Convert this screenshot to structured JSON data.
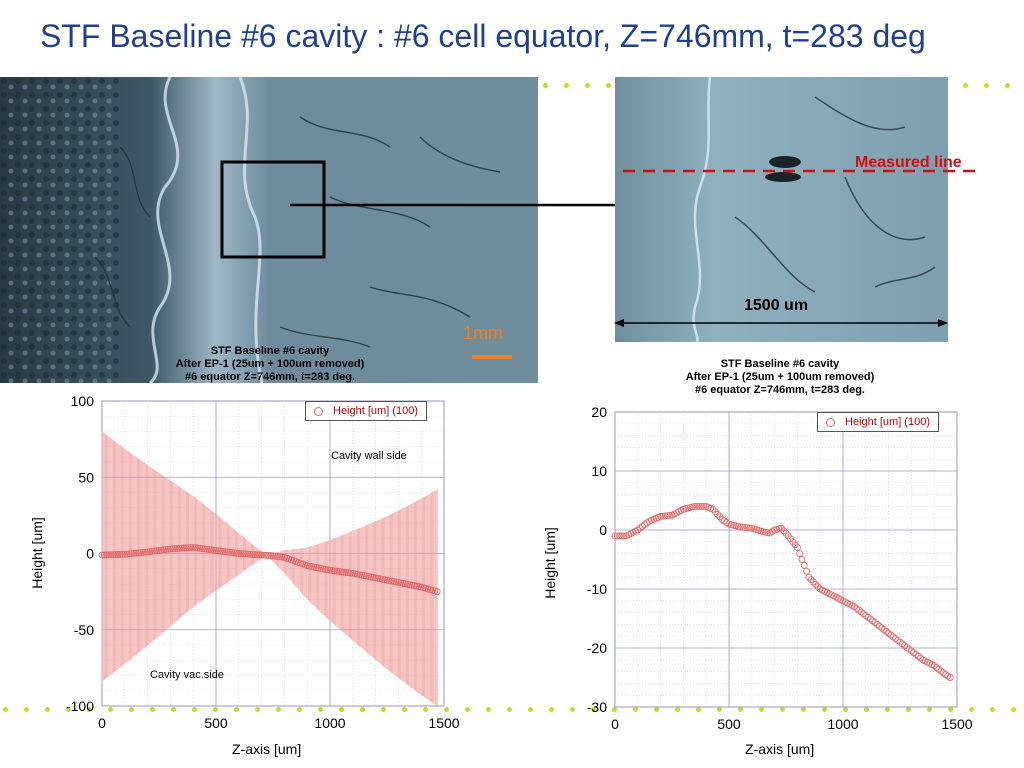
{
  "slide": {
    "title": "STF Baseline #6 cavity : #6 cell equator, Z=746mm, t=283 deg",
    "colors": {
      "title": "#1f3f8f",
      "dots": "#c5d82b",
      "series": "#e26a6a",
      "measured_line": "#d01010"
    }
  },
  "micrograph_left": {
    "scale_bar_label": "1mm",
    "caption": [
      "STF Baseline #6 cavity",
      "After EP-1 (25um + 100um removed)",
      "#6 equator Z=746mm, t=283 deg."
    ]
  },
  "micrograph_right": {
    "measured_line_label": "Measured line",
    "width_label": "1500 um"
  },
  "chart_data": [
    {
      "type": "scatter",
      "title": "",
      "xlabel": "Z-axis [um]",
      "ylabel": "Height [um]",
      "xlim": [
        0,
        1500
      ],
      "ylim": [
        -100,
        100
      ],
      "xticks": [
        0,
        500,
        1000,
        1500
      ],
      "yticks": [
        100,
        50,
        0,
        -50,
        -100
      ],
      "grid": true,
      "legend_position": "top-right",
      "series": [
        {
          "name": "Height [um] (100)",
          "x": [
            0,
            100,
            200,
            300,
            400,
            500,
            600,
            700,
            750,
            800,
            900,
            1000,
            1100,
            1200,
            1300,
            1400,
            1470
          ],
          "y": [
            -1,
            -0.5,
            1,
            3,
            4,
            2,
            0,
            -1,
            -1.5,
            -2.5,
            -8,
            -11,
            -13,
            -16,
            -19,
            -22,
            -25
          ]
        }
      ],
      "annotations": [
        "Cavity wall side",
        "Cavity vac.side"
      ],
      "error_band_extent": {
        "left_top": 80,
        "left_bottom": -84,
        "cross_x": 720,
        "right_top": 42,
        "right_bottom": -100
      }
    },
    {
      "type": "scatter",
      "title": "STF Baseline #6 cavity\nAfter EP-1 (25um + 100um removed)\n#6 equator Z=746mm, t=283 deg.",
      "title_lines": [
        "STF Baseline #6 cavity",
        "After EP-1 (25um + 100um removed)",
        "#6 equator Z=746mm, t=283 deg."
      ],
      "xlabel": "Z-axis [um]",
      "ylabel": "Height [um]",
      "xlim": [
        0,
        1500
      ],
      "ylim": [
        -30,
        20
      ],
      "xticks": [
        0,
        500,
        1000,
        1500
      ],
      "yticks": [
        20,
        10,
        0,
        -10,
        -20,
        -30
      ],
      "grid": true,
      "legend_position": "top-right",
      "series": [
        {
          "name": "Height [um] (100)",
          "x": [
            0,
            50,
            100,
            150,
            200,
            250,
            300,
            350,
            400,
            430,
            470,
            500,
            550,
            600,
            650,
            680,
            700,
            730,
            760,
            800,
            850,
            900,
            950,
            1000,
            1050,
            1100,
            1150,
            1200,
            1250,
            1300,
            1350,
            1400,
            1450,
            1470
          ],
          "y": [
            -1,
            -1,
            0,
            1.5,
            2.3,
            2.5,
            3.5,
            4,
            4,
            3.5,
            1.8,
            1,
            0.5,
            0.3,
            -0.3,
            -0.5,
            0,
            0.3,
            -1,
            -3,
            -8,
            -10,
            -11,
            -12,
            -13,
            -14.5,
            -16,
            -17.5,
            -19,
            -20.5,
            -22,
            -23,
            -24.5,
            -25
          ]
        }
      ]
    }
  ],
  "chart_text": {
    "left": {
      "legend": "Height [um] (100)",
      "wall_note": "Cavity wall side",
      "vac_note": "Cavity vac.side",
      "xlabel": "Z-axis [um]",
      "ylabel": "Height [um]"
    },
    "right": {
      "legend": "Height [um] (100)",
      "xlabel": "Z-axis [um]",
      "ylabel": "Height [um]"
    }
  }
}
